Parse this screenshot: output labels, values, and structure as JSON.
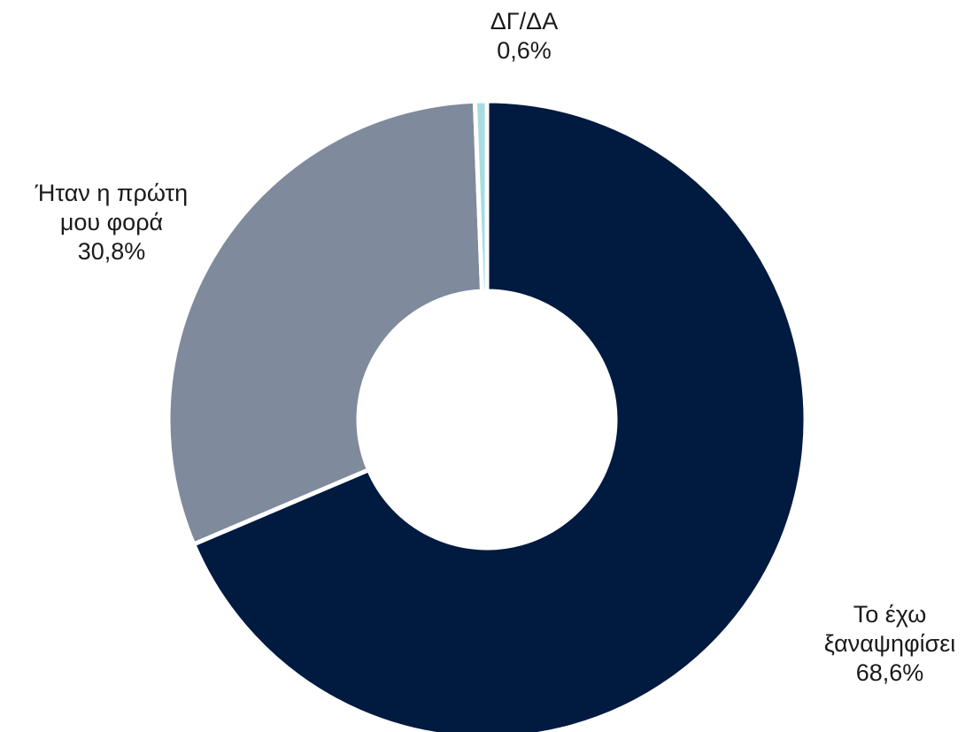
{
  "chart_data": {
    "type": "pie",
    "style": "donut",
    "start_angle_deg": 0,
    "direction": "clockwise",
    "slices": [
      {
        "label_lines": [
          "Το έχω",
          "ξαναψηφίσει"
        ],
        "value": 68.6,
        "value_text": "68,6%",
        "color": "#011a40"
      },
      {
        "label_lines": [
          "Ήταν η πρώτη",
          "μου φορά"
        ],
        "value": 30.8,
        "value_text": "30,8%",
        "color": "#7f8a9c"
      },
      {
        "label_lines": [
          "ΔΓ/ΔΑ"
        ],
        "value": 0.6,
        "value_text": "0,6%",
        "color": "#a6dde0"
      }
    ]
  }
}
